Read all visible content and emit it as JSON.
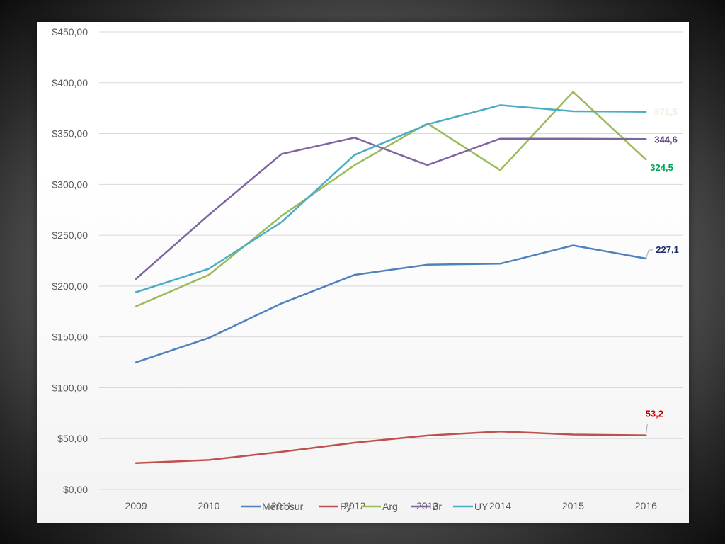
{
  "chart_data": {
    "type": "line",
    "title": "",
    "xlabel": "",
    "ylabel": "",
    "categories": [
      "2009",
      "2010",
      "2011",
      "2012",
      "2013",
      "2014",
      "2015",
      "2016"
    ],
    "ylim": [
      0,
      450
    ],
    "ytick_labels": [
      "$0,00",
      "$50,00",
      "$100,00",
      "$150,00",
      "$200,00",
      "$250,00",
      "$300,00",
      "$350,00",
      "$400,00",
      "$450,00"
    ],
    "grid": true,
    "legend_position": "bottom",
    "series": [
      {
        "name": "Mercosur",
        "color": "#4f81bd",
        "values": [
          125,
          149,
          183,
          211,
          221,
          222,
          240,
          227.1
        ],
        "end_label": "227,1",
        "end_label_color": "#1f2d6b"
      },
      {
        "name": "Py",
        "color": "#c0504d",
        "values": [
          26,
          29,
          37,
          46,
          53,
          57,
          54,
          53.2
        ],
        "end_label": "53,2",
        "end_label_color": "#c00000"
      },
      {
        "name": "Arg",
        "color": "#9bbb59",
        "values": [
          180,
          211,
          269,
          319,
          360,
          314,
          391,
          324.5
        ],
        "end_label": "324,5",
        "end_label_color": "#00a651"
      },
      {
        "name": "Br",
        "color": "#8064a2",
        "values": [
          207,
          270,
          330,
          346,
          319,
          345,
          345,
          344.6
        ],
        "end_label": "344,6",
        "end_label_color": "#5b3e84"
      },
      {
        "name": "UY",
        "color": "#4bacc6",
        "values": [
          194,
          217,
          263,
          329,
          359,
          378,
          372,
          371.5
        ],
        "end_label": "371,5",
        "end_label_color": "#f2efe0"
      }
    ]
  }
}
